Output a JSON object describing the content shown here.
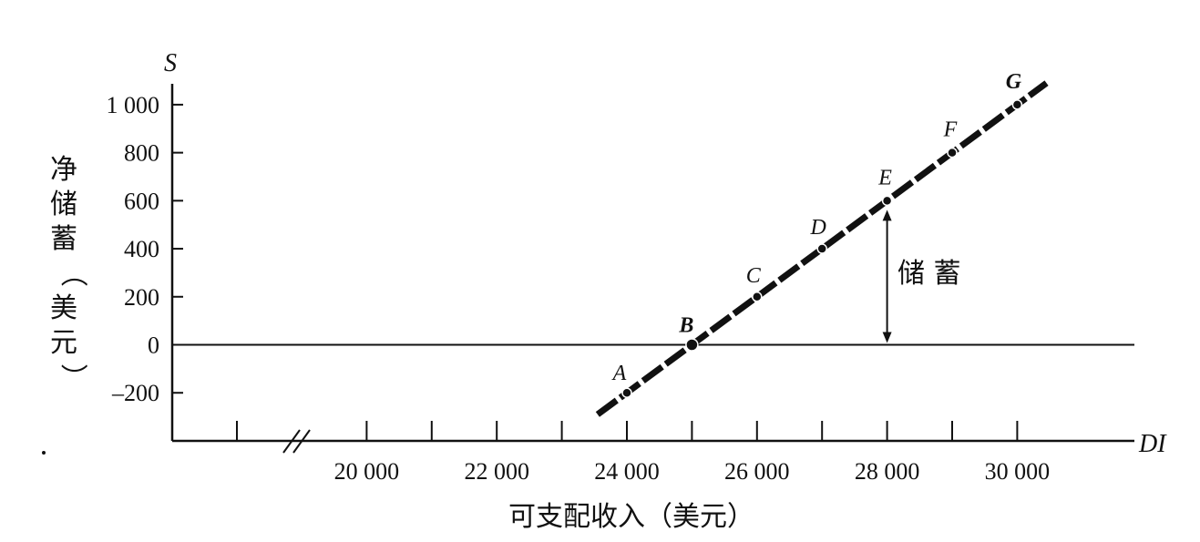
{
  "chart_data": {
    "type": "line",
    "y_axis_symbol": "S",
    "x_axis_symbol": "DI",
    "ylabel": "净储蓄（美元）",
    "xlabel": "可支配收入（美元）",
    "yticks": [
      {
        "value": 1000,
        "label": "1 000"
      },
      {
        "value": 800,
        "label": "800"
      },
      {
        "value": 600,
        "label": "600"
      },
      {
        "value": 400,
        "label": "400"
      },
      {
        "value": 200,
        "label": "200"
      },
      {
        "value": 0,
        "label": "0"
      },
      {
        "value": -200,
        "label": "–200"
      }
    ],
    "xticks": [
      {
        "value": 20000,
        "label": "20 000"
      },
      {
        "value": 22000,
        "label": "22 000"
      },
      {
        "value": 24000,
        "label": "24 000"
      },
      {
        "value": 26000,
        "label": "26 000"
      },
      {
        "value": 28000,
        "label": "28 000"
      },
      {
        "value": 30000,
        "label": "30 000"
      }
    ],
    "minor_xticks": [
      21000,
      23000,
      25000,
      27000,
      29000
    ],
    "axis_break": true,
    "ylim": [
      -300,
      1100
    ],
    "series": [
      {
        "points": [
          {
            "label": "A",
            "x": 24000,
            "y": -200
          },
          {
            "label": "B",
            "x": 25000,
            "y": 0
          },
          {
            "label": "C",
            "x": 26000,
            "y": 200
          },
          {
            "label": "D",
            "x": 27000,
            "y": 400
          },
          {
            "label": "E",
            "x": 28000,
            "y": 600
          },
          {
            "label": "F",
            "x": 29000,
            "y": 800
          },
          {
            "label": "G",
            "x": 30000,
            "y": 1000
          }
        ],
        "line_extent_x": [
          23550,
          30450
        ]
      }
    ],
    "baseline": 0,
    "annotation": {
      "text": "储 蓄",
      "x": 28000,
      "from_y": 0,
      "to_y": 600
    }
  }
}
